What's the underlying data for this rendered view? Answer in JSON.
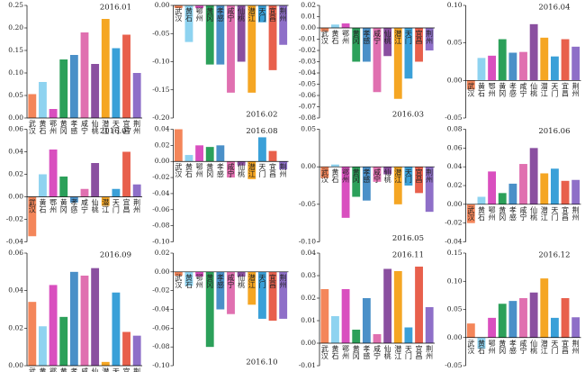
{
  "chart_data": [
    {
      "type": "bar",
      "title": "2016.01",
      "categories": [
        "武汉",
        "黄石",
        "鄂州",
        "黄冈",
        "孝感",
        "咸宁",
        "仙桃",
        "潜江",
        "天门",
        "宜昌",
        "荆州"
      ],
      "values": [
        0.053,
        0.08,
        0.02,
        0.13,
        0.14,
        0.19,
        0.12,
        0.22,
        0.155,
        0.185,
        0.1
      ],
      "colors": [
        "#f4865a",
        "#8ed3f0",
        "#d94fbf",
        "#2ca05a",
        "#4a90c8",
        "#e070b0",
        "#8a4fa0",
        "#f5a623",
        "#3aa0d8",
        "#e8604c",
        "#8e6fc8"
      ],
      "ylim": [
        0,
        0.25
      ],
      "yticks": [
        {
          "value": 0,
          "label": "0.00"
        },
        0.05,
        {
          "value": 0.1,
          "label": "0.10"
        },
        0.15,
        {
          "value": 0.2,
          "label": "0.20"
        },
        0.25
      ]
    },
    {
      "type": "bar",
      "title": "2016.02",
      "categories": [
        "武汉",
        "黄石",
        "鄂州",
        "黄冈",
        "孝感",
        "咸宁",
        "仙桃",
        "潜江",
        "天门",
        "宜昌",
        "荆州"
      ],
      "values": [
        -0.005,
        -0.065,
        -0.005,
        -0.105,
        -0.105,
        -0.155,
        -0.1,
        -0.155,
        -0.03,
        -0.115,
        -0.07
      ],
      "colors": [
        "#f4865a",
        "#8ed3f0",
        "#d94fbf",
        "#2ca05a",
        "#4a90c8",
        "#e070b0",
        "#8a4fa0",
        "#f5a623",
        "#3aa0d8",
        "#e8604c",
        "#8e6fc8"
      ],
      "ylim": [
        -0.2,
        0
      ],
      "yticks": [
        {
          "value": -0.2,
          "label": "-0.20"
        },
        -0.15,
        {
          "value": -0.1,
          "label": "-0.10"
        },
        -0.05,
        {
          "value": 0,
          "label": "0.00"
        }
      ]
    },
    {
      "type": "bar",
      "title": "2016.03",
      "categories": [
        "武汉",
        "黄石",
        "鄂州",
        "黄冈",
        "孝感",
        "咸宁",
        "仙桃",
        "潜江",
        "天门",
        "宜昌",
        "荆州"
      ],
      "values": [
        -0.003,
        0.003,
        0.004,
        -0.03,
        -0.03,
        -0.057,
        -0.025,
        -0.063,
        -0.045,
        -0.03,
        -0.02
      ],
      "colors": [
        "#f4865a",
        "#8ed3f0",
        "#d94fbf",
        "#2ca05a",
        "#4a90c8",
        "#e070b0",
        "#8a4fa0",
        "#f5a623",
        "#3aa0d8",
        "#e8604c",
        "#8e6fc8"
      ],
      "ylim": [
        -0.08,
        0.02
      ],
      "yticks": [
        -0.08,
        -0.07,
        -0.06,
        -0.05,
        -0.04,
        -0.03,
        -0.02,
        -0.01,
        {
          "value": 0,
          "label": "0.00"
        },
        0.01,
        0.02
      ]
    },
    {
      "type": "bar",
      "title": "2016.04",
      "categories": [
        "武汉",
        "黄石",
        "鄂州",
        "黄冈",
        "孝感",
        "咸宁",
        "仙桃",
        "潜江",
        "天门",
        "宜昌",
        "荆州"
      ],
      "values": [
        -0.012,
        0.03,
        0.033,
        0.055,
        0.037,
        0.038,
        0.075,
        0.057,
        0.032,
        0.055,
        0.045
      ],
      "colors": [
        "#f4865a",
        "#8ed3f0",
        "#d94fbf",
        "#2ca05a",
        "#4a90c8",
        "#e070b0",
        "#8a4fa0",
        "#f5a623",
        "#3aa0d8",
        "#e8604c",
        "#8e6fc8"
      ],
      "ylim": [
        -0.05,
        0.1
      ],
      "yticks": [
        -0.05,
        {
          "value": 0,
          "label": "0.00"
        },
        0.05,
        {
          "value": 0.1,
          "label": "0.10"
        }
      ]
    },
    {
      "type": "bar",
      "title": "2016.07",
      "categories": [
        "武汉",
        "黄石",
        "鄂州",
        "黄冈",
        "孝感",
        "咸宁",
        "仙桃",
        "潜江",
        "天门",
        "宜昌",
        "荆州"
      ],
      "values": [
        -0.035,
        0.02,
        0.042,
        0.018,
        -0.005,
        0.007,
        0.03,
        -0.008,
        0.007,
        0.04,
        0.011
      ],
      "colors": [
        "#f4865a",
        "#8ed3f0",
        "#d94fbf",
        "#2ca05a",
        "#4a90c8",
        "#e070b0",
        "#8a4fa0",
        "#f5a623",
        "#3aa0d8",
        "#e8604c",
        "#8e6fc8"
      ],
      "ylim": [
        -0.04,
        0.06
      ],
      "yticks": [
        -0.04,
        -0.02,
        {
          "value": 0,
          "label": "0.00"
        },
        0.02,
        0.04,
        0.06
      ]
    },
    {
      "type": "bar",
      "title": "2016.08",
      "categories": [
        "武汉",
        "黄石",
        "鄂州",
        "黄冈",
        "孝感",
        "咸宁",
        "仙桃",
        "潜江",
        "天门",
        "宜昌",
        "荆州"
      ],
      "values": [
        0.04,
        0.008,
        0.02,
        0.018,
        0.02,
        -0.02,
        -0.005,
        -0.022,
        0.03,
        0.013,
        -0.01
      ],
      "colors": [
        "#f4865a",
        "#8ed3f0",
        "#d94fbf",
        "#2ca05a",
        "#4a90c8",
        "#e070b0",
        "#8a4fa0",
        "#f5a623",
        "#3aa0d8",
        "#e8604c",
        "#8e6fc8"
      ],
      "ylim": [
        -0.1,
        0.04
      ],
      "yticks": [
        {
          "value": -0.1,
          "label": "-0.10"
        },
        -0.08,
        -0.06,
        -0.04,
        -0.02,
        {
          "value": 0,
          "label": "0.00"
        },
        0.02,
        0.04
      ]
    },
    {
      "type": "bar",
      "title": "2016.05",
      "categories": [
        "武汉",
        "黄石",
        "鄂州",
        "黄冈",
        "孝感",
        "咸宁",
        "仙桃",
        "潜江",
        "天门",
        "宜昌",
        "荆州"
      ],
      "values": [
        -0.015,
        0.003,
        -0.068,
        -0.04,
        -0.045,
        -0.02,
        -0.01,
        -0.05,
        -0.025,
        -0.035,
        -0.06
      ],
      "colors": [
        "#f4865a",
        "#8ed3f0",
        "#d94fbf",
        "#2ca05a",
        "#4a90c8",
        "#e070b0",
        "#8a4fa0",
        "#f5a623",
        "#3aa0d8",
        "#e8604c",
        "#8e6fc8"
      ],
      "ylim": [
        -0.1,
        0.05
      ],
      "yticks": [
        {
          "value": -0.1,
          "label": "-0.10"
        },
        -0.05,
        {
          "value": 0,
          "label": "0.00"
        },
        0.05
      ]
    },
    {
      "type": "bar",
      "title": "2016.06",
      "categories": [
        "武汉",
        "黄石",
        "鄂州",
        "黄冈",
        "孝感",
        "咸宁",
        "仙桃",
        "潜江",
        "天门",
        "宜昌",
        "荆州"
      ],
      "values": [
        -0.02,
        0.008,
        0.035,
        0.012,
        0.022,
        0.043,
        0.06,
        0.033,
        0.038,
        0.025,
        0.026
      ],
      "colors": [
        "#f4865a",
        "#8ed3f0",
        "#d94fbf",
        "#2ca05a",
        "#4a90c8",
        "#e070b0",
        "#8a4fa0",
        "#f5a623",
        "#3aa0d8",
        "#e8604c",
        "#8e6fc8"
      ],
      "ylim": [
        -0.04,
        0.08
      ],
      "yticks": [
        -0.04,
        -0.02,
        {
          "value": 0,
          "label": "0.00"
        },
        0.02,
        0.04,
        0.06,
        0.08
      ]
    },
    {
      "type": "bar",
      "title": "2016.09",
      "categories": [
        "武汉",
        "黄石",
        "鄂州",
        "黄冈",
        "孝感",
        "咸宁",
        "仙桃",
        "潜江",
        "天门",
        "宜昌",
        "荆州"
      ],
      "values": [
        0.034,
        0.021,
        0.043,
        0.026,
        0.05,
        0.048,
        0.052,
        0.002,
        0.039,
        0.018,
        0.016
      ],
      "colors": [
        "#f4865a",
        "#8ed3f0",
        "#d94fbf",
        "#2ca05a",
        "#4a90c8",
        "#e070b0",
        "#8a4fa0",
        "#f5a623",
        "#3aa0d8",
        "#e8604c",
        "#8e6fc8"
      ],
      "ylim": [
        0,
        0.06
      ],
      "yticks": [
        {
          "value": 0,
          "label": "0.00"
        },
        0.02,
        0.04,
        0.06
      ]
    },
    {
      "type": "bar",
      "title": "2016.10",
      "categories": [
        "武汉",
        "黄石",
        "鄂州",
        "黄冈",
        "孝感",
        "咸宁",
        "仙桃",
        "潜江",
        "天门",
        "宜昌",
        "荆州"
      ],
      "values": [
        -0.004,
        -0.015,
        -0.005,
        -0.08,
        -0.04,
        -0.045,
        -0.005,
        -0.035,
        -0.05,
        -0.052,
        -0.05
      ],
      "colors": [
        "#f4865a",
        "#8ed3f0",
        "#d94fbf",
        "#2ca05a",
        "#4a90c8",
        "#e070b0",
        "#8a4fa0",
        "#f5a623",
        "#3aa0d8",
        "#e8604c",
        "#8e6fc8"
      ],
      "ylim": [
        -0.1,
        0.02
      ],
      "yticks": [
        {
          "value": -0.1,
          "label": "-0.10"
        },
        -0.08,
        -0.06,
        -0.04,
        -0.02,
        {
          "value": 0,
          "label": "0.00"
        },
        0.02
      ]
    },
    {
      "type": "bar",
      "title": "2016.11",
      "categories": [
        "武汉",
        "黄石",
        "鄂州",
        "黄冈",
        "孝感",
        "咸宁",
        "仙桃",
        "潜江",
        "天门",
        "宜昌",
        "荆州"
      ],
      "values": [
        0.024,
        0.012,
        0.024,
        0.006,
        0.02,
        0.004,
        0.033,
        0.032,
        0.007,
        0.034,
        0.016
      ],
      "colors": [
        "#f4865a",
        "#8ed3f0",
        "#d94fbf",
        "#2ca05a",
        "#4a90c8",
        "#e070b0",
        "#8a4fa0",
        "#f5a623",
        "#3aa0d8",
        "#e8604c",
        "#8e6fc8"
      ],
      "ylim": [
        -0.01,
        0.04
      ],
      "yticks": [
        -0.01,
        {
          "value": 0,
          "label": "0.00"
        },
        0.01,
        0.02,
        0.03,
        0.04
      ]
    },
    {
      "type": "bar",
      "title": "2016.12",
      "categories": [
        "武汉",
        "黄石",
        "鄂州",
        "黄冈",
        "孝感",
        "咸宁",
        "仙桃",
        "潜江",
        "天门",
        "宜昌",
        "荆州"
      ],
      "values": [
        0.025,
        -0.02,
        0.035,
        0.06,
        0.065,
        0.07,
        0.08,
        0.105,
        0.035,
        0.07,
        0.036
      ],
      "colors": [
        "#f4865a",
        "#8ed3f0",
        "#d94fbf",
        "#2ca05a",
        "#4a90c8",
        "#e070b0",
        "#8a4fa0",
        "#f5a623",
        "#3aa0d8",
        "#e8604c",
        "#8e6fc8"
      ],
      "ylim": [
        -0.05,
        0.15
      ],
      "yticks": [
        -0.05,
        {
          "value": 0,
          "label": "0.00"
        },
        0.05,
        {
          "value": 0.1,
          "label": "0.10"
        },
        0.15
      ]
    }
  ]
}
